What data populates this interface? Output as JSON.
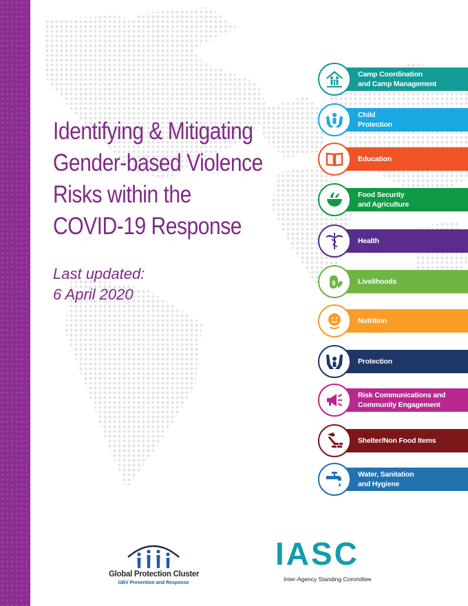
{
  "colors": {
    "brand_purple": "#8b2c91",
    "title_purple": "#7f2a86",
    "iasc_teal": "#139cae",
    "map_dot": "#e4e4e6"
  },
  "title_lines": [
    "Identifying & Mitigating",
    "Gender-based Violence",
    "Risks within the",
    "COVID-19 Response"
  ],
  "last_updated": {
    "label": "Last updated:",
    "date": "6 April 2020"
  },
  "sectors": [
    {
      "label": "Camp Coordination\nand Camp Management",
      "color": "#139b96",
      "icon": "camp-icon"
    },
    {
      "label": "Child\nProtection",
      "color": "#1aa7e2",
      "icon": "child-protection-icon"
    },
    {
      "label": "Education",
      "color": "#ef5427",
      "icon": "education-book-icon"
    },
    {
      "label": "Food Security\nand Agriculture",
      "color": "#109a46",
      "icon": "food-bowl-icon"
    },
    {
      "label": "Health",
      "color": "#5a2c8b",
      "icon": "caduceus-icon"
    },
    {
      "label": "Livelihoods",
      "color": "#6db643",
      "icon": "livelihoods-money-icon"
    },
    {
      "label": "Nutrition",
      "color": "#f99d26",
      "icon": "nutrition-face-icon"
    },
    {
      "label": "Protection",
      "color": "#1f3766",
      "icon": "protection-hands-icon"
    },
    {
      "label": "Risk Communications and\nCommunity Engagement",
      "color": "#b9288f",
      "icon": "megaphone-icon"
    },
    {
      "label": "Shelter/Non Food Items",
      "color": "#7b1619",
      "icon": "shelter-hammer-icon"
    },
    {
      "label": "Water, Sanitation\nand Hygiene",
      "color": "#2173b0",
      "icon": "water-tap-icon"
    }
  ],
  "logos": {
    "gpc_name": "Global Protection Cluster",
    "gpc_sub": "GBV Prevention and Response",
    "iasc_mark": "IASC",
    "iasc_name": "Inter-Agency Standing Committee"
  }
}
